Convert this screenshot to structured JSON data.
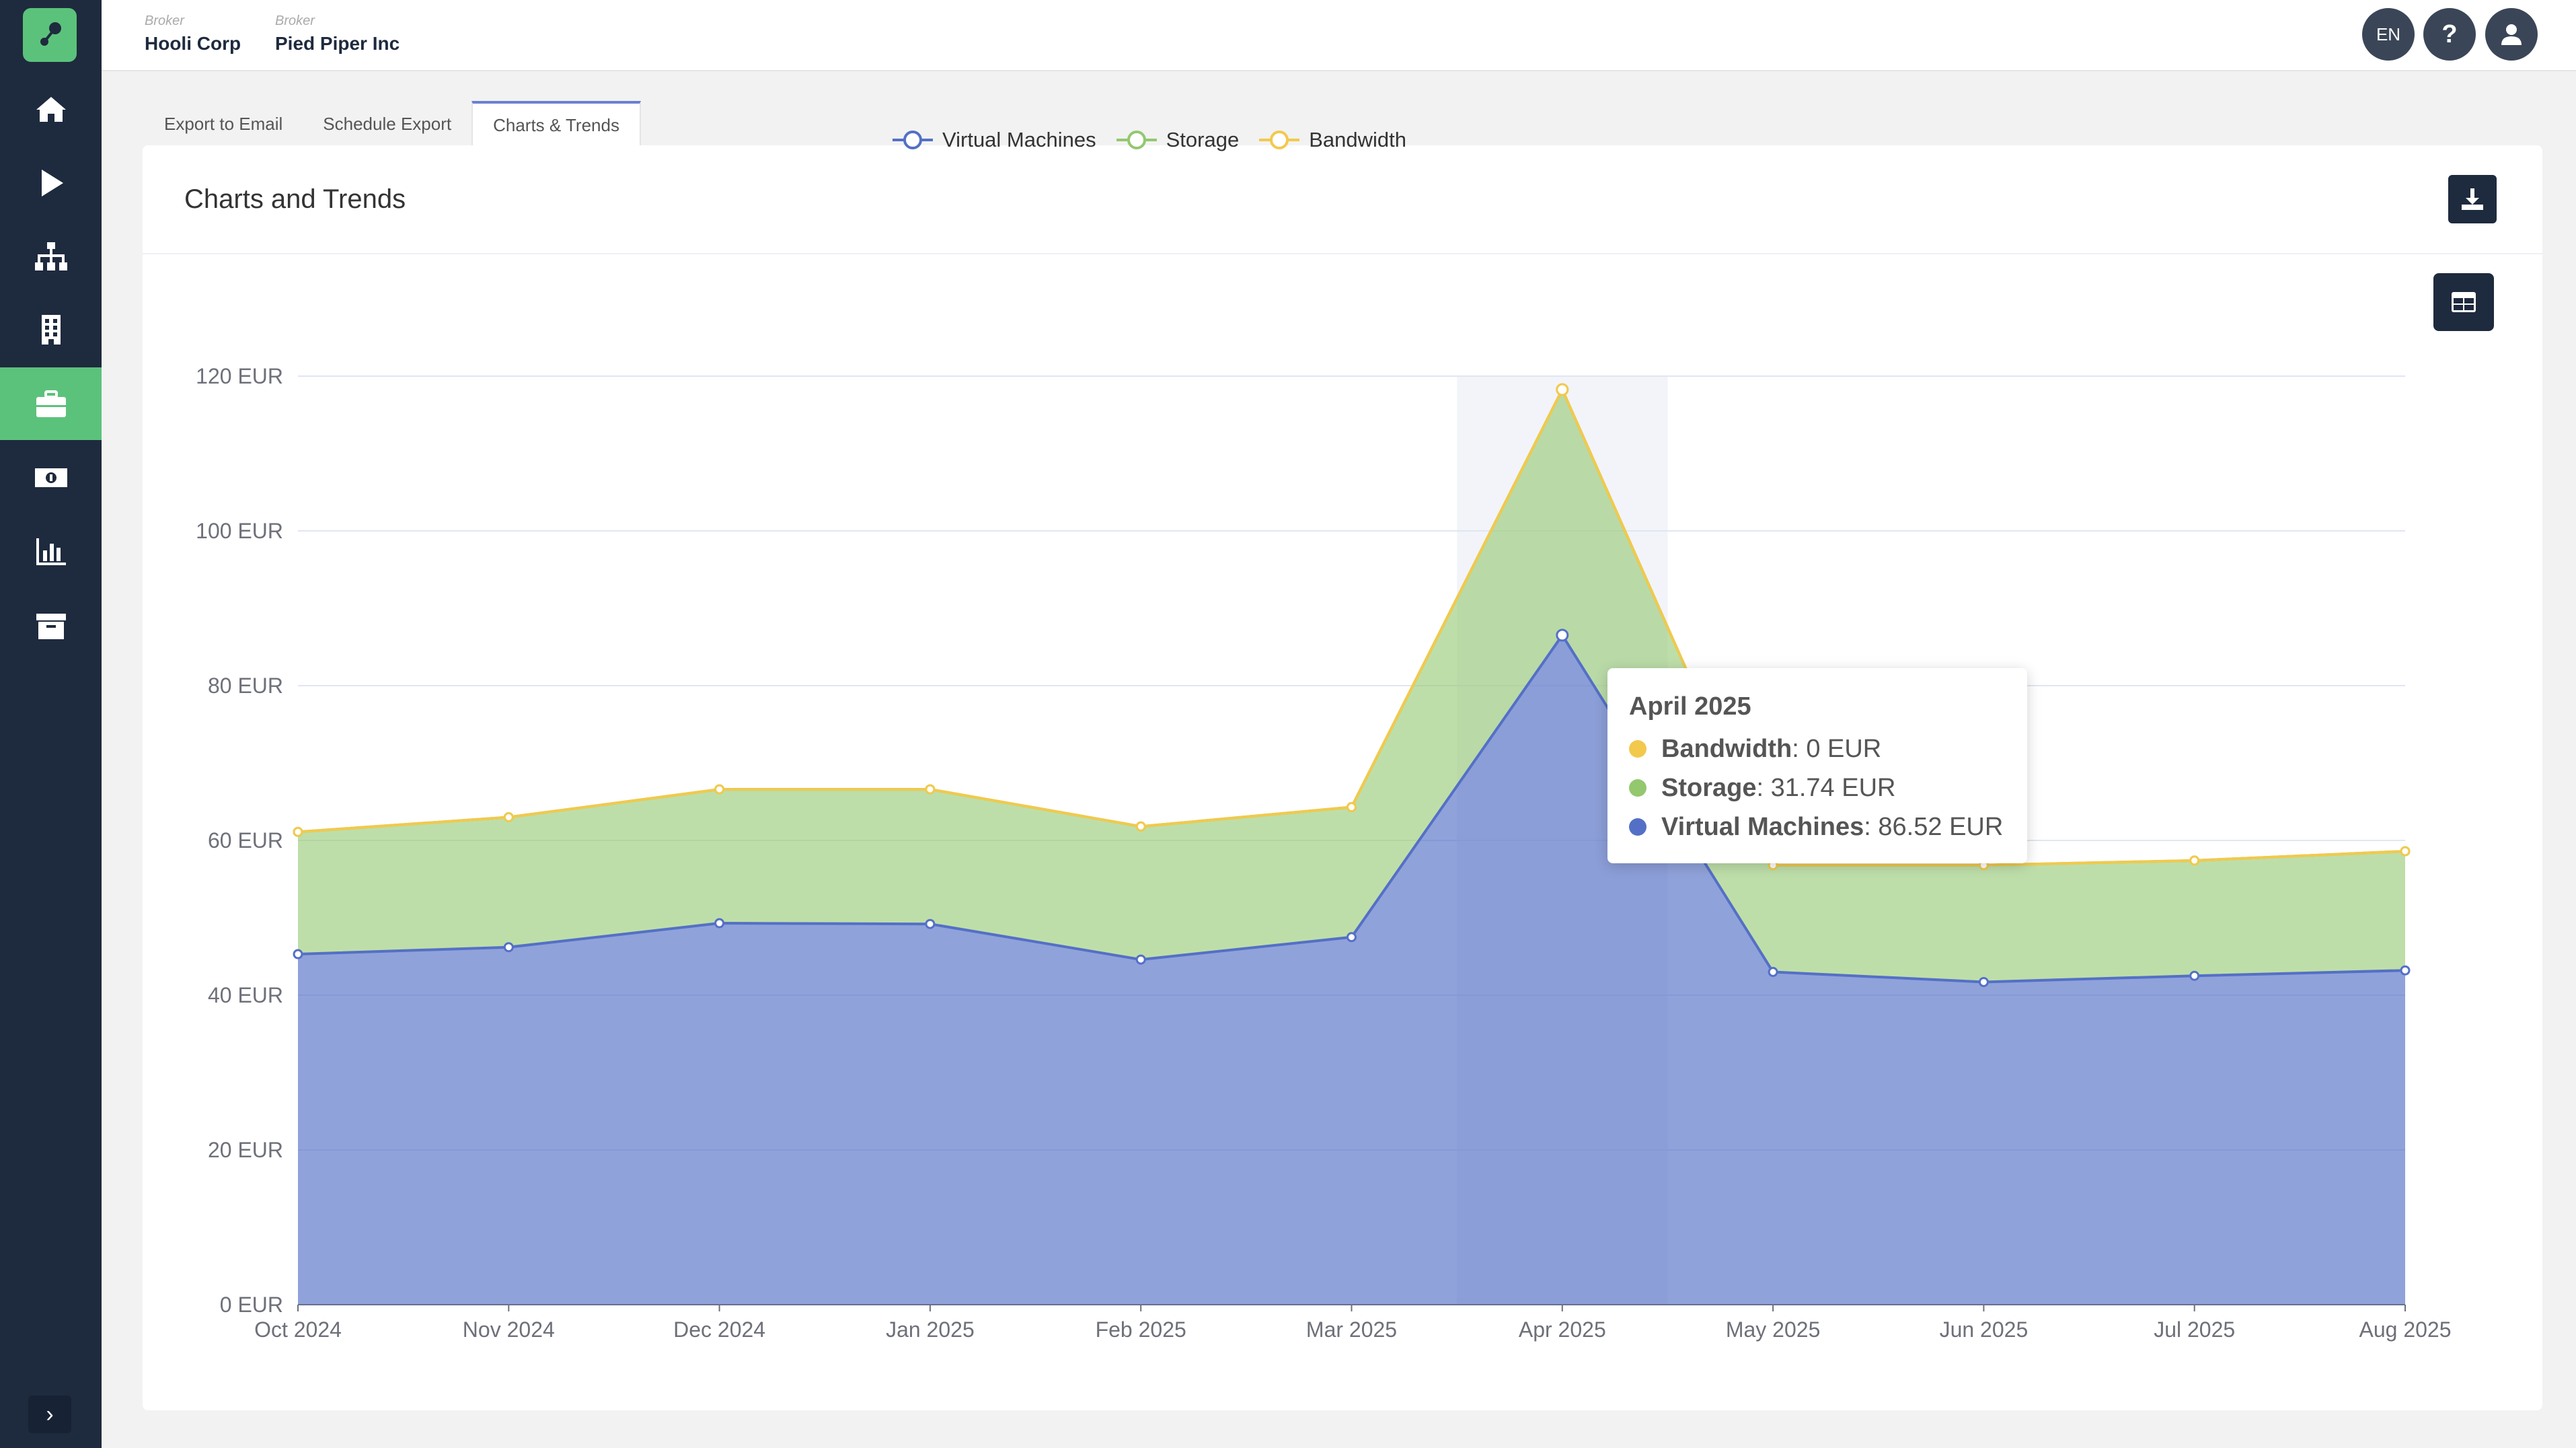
{
  "header": {
    "breadcrumbs": [
      {
        "caption": "Broker",
        "name": "Hooli Corp"
      },
      {
        "caption": "Broker",
        "name": "Pied Piper Inc"
      }
    ],
    "lang_label": "EN",
    "help_label": "?"
  },
  "sidebar": {
    "items": [
      {
        "icon": "home-icon"
      },
      {
        "icon": "play-icon"
      },
      {
        "icon": "sitemap-icon"
      },
      {
        "icon": "building-icon"
      },
      {
        "icon": "briefcase-icon",
        "active": true
      },
      {
        "icon": "money-icon"
      },
      {
        "icon": "bar-chart-icon"
      },
      {
        "icon": "archive-icon"
      }
    ],
    "collapse_label": "›"
  },
  "tabs": [
    {
      "label": "Export to Email"
    },
    {
      "label": "Schedule Export"
    },
    {
      "label": "Charts & Trends",
      "active": true
    }
  ],
  "panel": {
    "title": "Charts and Trends"
  },
  "tooltip": {
    "title": "April 2025",
    "rows": [
      {
        "name": "Bandwidth",
        "value": ": 0 EUR",
        "color": "#f2c94c"
      },
      {
        "name": "Storage",
        "value": ": 31.74 EUR",
        "color": "#93c86f"
      },
      {
        "name": "Virtual Machines",
        "value": ": 86.52 EUR",
        "color": "#5470c6"
      }
    ]
  },
  "chart_data": {
    "type": "area",
    "stacked": true,
    "categories": [
      "Oct 2024",
      "Nov 2024",
      "Dec 2024",
      "Jan 2025",
      "Feb 2025",
      "Mar 2025",
      "Apr 2025",
      "May 2025",
      "Jun 2025",
      "Jul 2025",
      "Aug 2025"
    ],
    "series": [
      {
        "name": "Virtual Machines",
        "color": "#5470c6",
        "values": [
          45.3,
          46.2,
          49.3,
          49.2,
          44.6,
          47.5,
          86.52,
          43.0,
          41.7,
          42.5,
          43.2
        ]
      },
      {
        "name": "Storage",
        "color": "#93c86f",
        "values": [
          15.8,
          16.8,
          17.3,
          17.4,
          17.2,
          16.8,
          31.74,
          13.8,
          15.1,
          14.9,
          15.4
        ]
      },
      {
        "name": "Bandwidth",
        "color": "#f2c94c",
        "values": [
          0,
          0,
          0,
          0,
          0,
          0,
          0,
          0,
          0,
          0,
          0
        ]
      }
    ],
    "y_ticks": [
      "0 EUR",
      "20 EUR",
      "40 EUR",
      "60 EUR",
      "80 EUR",
      "100 EUR",
      "120 EUR"
    ],
    "ylim": [
      0,
      120
    ],
    "highlight_category": "Apr 2025",
    "legend_position": "top-center",
    "grid": true
  }
}
